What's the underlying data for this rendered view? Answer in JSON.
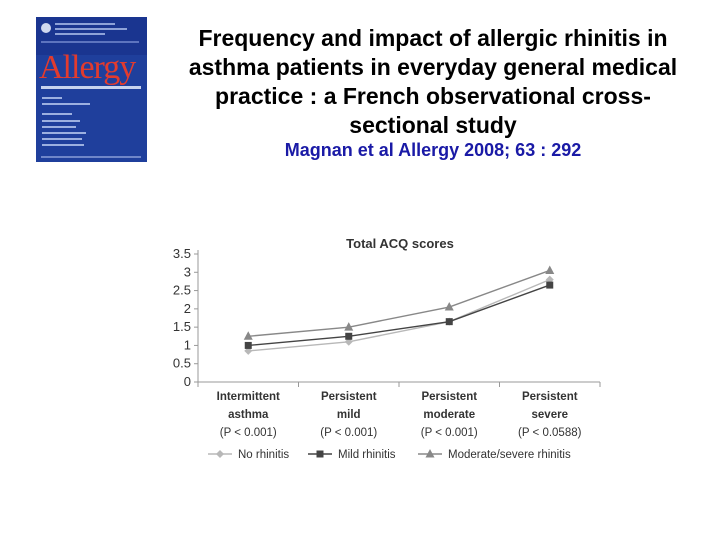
{
  "cover": {
    "brand": "Allergy"
  },
  "header": {
    "title": "Frequency and impact of allergic rhinitis in asthma patients in everyday general medical practice : a French observational cross-sectional study",
    "citation": "Magnan et al Allergy 2008; 63 : 292"
  },
  "chart_data": {
    "type": "line",
    "title": "Total ACQ scores",
    "categories": [
      [
        "Intermittent",
        "asthma",
        "(P < 0.001)"
      ],
      [
        "Persistent",
        "mild",
        "(P < 0.001)"
      ],
      [
        "Persistent",
        "moderate",
        "(P < 0.001)"
      ],
      [
        "Persistent",
        "severe",
        "(P < 0.0588)"
      ]
    ],
    "series": [
      {
        "name": "No rhinitis",
        "values": [
          0.85,
          1.1,
          1.65,
          2.8
        ],
        "color": "#b8b8b8",
        "marker": "diamond"
      },
      {
        "name": "Mild rhinitis",
        "values": [
          1.0,
          1.25,
          1.65,
          2.65
        ],
        "color": "#444444",
        "marker": "square"
      },
      {
        "name": "Moderate/severe rhinitis",
        "values": [
          1.25,
          1.5,
          2.05,
          3.05
        ],
        "color": "#888888",
        "marker": "triangle"
      }
    ],
    "ylim": [
      0,
      3.5
    ],
    "yticks": [
      "0",
      "0.5",
      "1",
      "1.5",
      "2",
      "2.5",
      "3",
      "3.5"
    ],
    "grid": false,
    "legend": "bottom"
  }
}
